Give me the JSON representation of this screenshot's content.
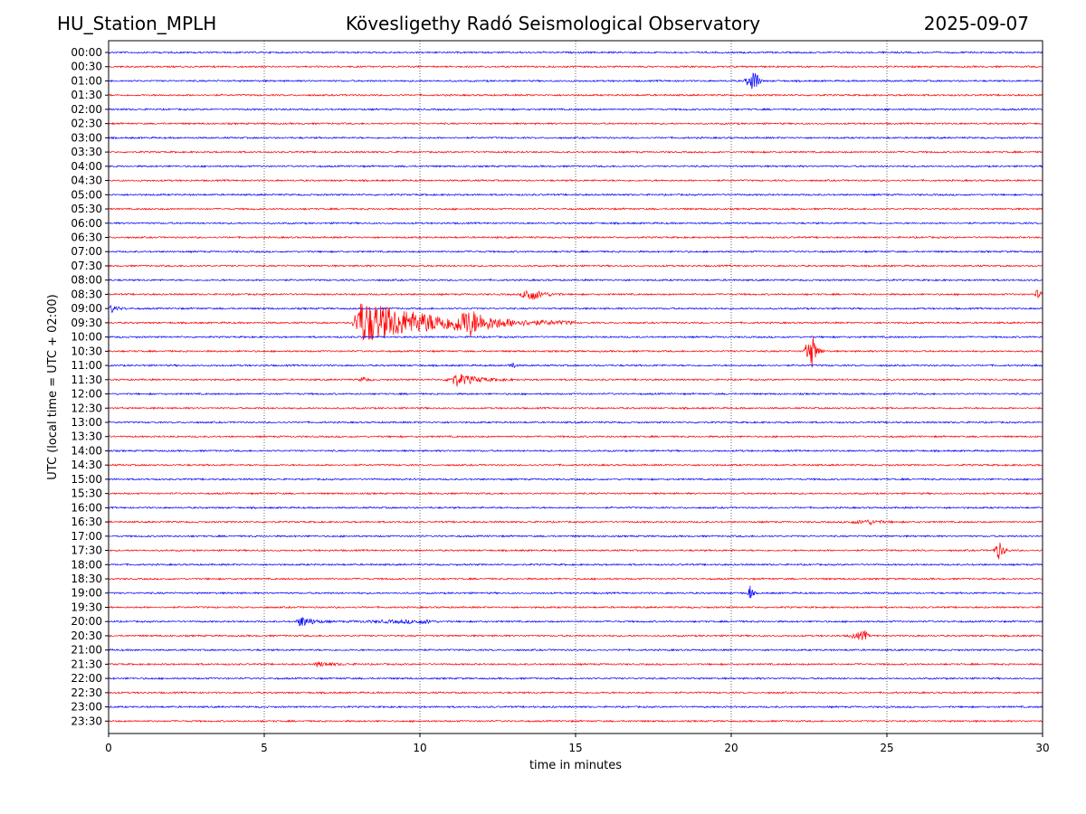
{
  "header": {
    "station": "HU_Station_MPLH",
    "observatory": "Kövesligethy Radó Seismological Observatory",
    "date": "2025-09-07"
  },
  "chart_data": {
    "type": "line",
    "subtype": "helicorder",
    "xlabel": "time in minutes",
    "ylabel": "UTC (local time = UTC + 02:00)",
    "xlim": [
      0,
      30
    ],
    "x_ticks": [
      0,
      5,
      10,
      15,
      20,
      25,
      30
    ],
    "grid": "vertical dotted at x ticks",
    "colors": {
      "even_rows": "#0000ff",
      "odd_rows": "#ff0000"
    },
    "rows": [
      "00:00",
      "00:30",
      "01:00",
      "01:30",
      "02:00",
      "02:30",
      "03:00",
      "03:30",
      "04:00",
      "04:30",
      "05:00",
      "05:30",
      "06:00",
      "06:30",
      "07:00",
      "07:30",
      "08:00",
      "08:30",
      "09:00",
      "09:30",
      "10:00",
      "10:30",
      "11:00",
      "11:30",
      "12:00",
      "12:30",
      "13:00",
      "13:30",
      "14:00",
      "14:30",
      "15:00",
      "15:30",
      "16:00",
      "16:30",
      "17:00",
      "17:30",
      "18:00",
      "18:30",
      "19:00",
      "19:30",
      "20:00",
      "20:30",
      "21:00",
      "21:30",
      "22:00",
      "22:30",
      "23:00",
      "23:30"
    ],
    "events": [
      {
        "row": "01:00",
        "start_min": 20.4,
        "end_min": 21.0,
        "peak": 20.8,
        "amplitude": 1.6
      },
      {
        "row": "08:30",
        "start_min": 13.2,
        "end_min": 14.6,
        "peak": 13.5,
        "amplitude": 0.9
      },
      {
        "row": "08:30",
        "start_min": 29.7,
        "end_min": 30.0,
        "peak": 29.9,
        "amplitude": 0.8
      },
      {
        "row": "09:00",
        "start_min": 0.0,
        "end_min": 0.6,
        "peak": 0.1,
        "amplitude": 0.5
      },
      {
        "row": "09:30",
        "start_min": 7.8,
        "end_min": 15.0,
        "peak": 8.1,
        "amplitude": 2.8
      },
      {
        "row": "09:30",
        "start_min": 11.0,
        "end_min": 13.0,
        "peak": 11.6,
        "amplitude": 1.2
      },
      {
        "row": "10:30",
        "start_min": 22.3,
        "end_min": 23.0,
        "peak": 22.6,
        "amplitude": 2.2
      },
      {
        "row": "11:00",
        "start_min": 12.8,
        "end_min": 13.2,
        "peak": 13.0,
        "amplitude": 0.35
      },
      {
        "row": "11:30",
        "start_min": 8.0,
        "end_min": 8.5,
        "peak": 8.2,
        "amplitude": 0.35
      },
      {
        "row": "11:30",
        "start_min": 10.8,
        "end_min": 13.0,
        "peak": 11.2,
        "amplitude": 0.8
      },
      {
        "row": "16:30",
        "start_min": 23.5,
        "end_min": 25.5,
        "peak": 24.5,
        "amplitude": 0.25
      },
      {
        "row": "17:30",
        "start_min": 28.4,
        "end_min": 29.0,
        "peak": 28.6,
        "amplitude": 1.2
      },
      {
        "row": "19:00",
        "start_min": 20.5,
        "end_min": 20.8,
        "peak": 20.6,
        "amplitude": 1.1
      },
      {
        "row": "20:00",
        "start_min": 6.0,
        "end_min": 7.2,
        "peak": 6.2,
        "amplitude": 0.7
      },
      {
        "row": "20:00",
        "start_min": 7.2,
        "end_min": 10.8,
        "peak": 10.3,
        "amplitude": 0.2
      },
      {
        "row": "20:30",
        "start_min": 23.7,
        "end_min": 24.5,
        "peak": 24.3,
        "amplitude": 0.6
      },
      {
        "row": "21:30",
        "start_min": 6.6,
        "end_min": 8.2,
        "peak": 6.7,
        "amplitude": 0.3
      }
    ]
  }
}
